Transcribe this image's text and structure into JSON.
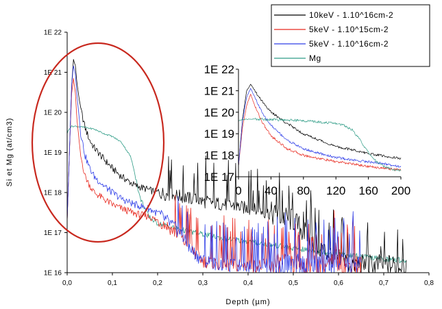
{
  "chart_data": [
    {
      "type": "line",
      "xlabel": "Depth (µm)",
      "ylabel": "Si et Mg (at/cm3)",
      "x_scale": "linear",
      "y_scale": "log",
      "xlim": [
        0,
        0.8
      ],
      "ylim": [
        1e+16,
        1e+22
      ],
      "x_ticks": [
        "0,0",
        "0,1",
        "0,2",
        "0,3",
        "0,4",
        "0,5",
        "0,6",
        "0,7",
        "0,8"
      ],
      "y_ticks": [
        "1E 16",
        "1E 17",
        "1E 18",
        "1E 19",
        "1E 20",
        "1E 21",
        "1E 22"
      ],
      "legend": "top-right",
      "annotation": "red ellipse highlighting the near-surface peak region",
      "series": [
        {
          "name": "10keV - 1.10^16cm-2",
          "color": "#000000",
          "x": [
            0.0,
            0.005,
            0.01,
            0.014,
            0.018,
            0.022,
            0.03,
            0.04,
            0.05,
            0.06,
            0.08,
            0.1,
            0.12,
            0.15,
            0.2,
            0.25,
            0.3,
            0.35,
            0.4,
            0.45,
            0.5,
            0.55,
            0.6,
            0.65,
            0.7,
            0.75
          ],
          "y": [
            2e+17,
            1e+19,
            5e+20,
            2.1e+21,
            1.5e+21,
            5e+20,
            1.2e+20,
            4e+19,
            2e+19,
            1.3e+19,
            7e+18,
            4e+18,
            2.5e+18,
            1.5e+18,
            1e+18,
            8e+17,
            6e+17,
            5e+17,
            4e+17,
            3e+17,
            2e+17,
            5e+16,
            2e+16,
            1.5e+16,
            1.5e+16,
            1.5e+16
          ]
        },
        {
          "name": "5keV - 1.10^15cm-2",
          "color": "#e8281e",
          "x": [
            0.0,
            0.005,
            0.01,
            0.014,
            0.018,
            0.022,
            0.03,
            0.04,
            0.05,
            0.06,
            0.08,
            0.1,
            0.12,
            0.15,
            0.18,
            0.2,
            0.22,
            0.25,
            0.27,
            0.3,
            0.35,
            0.4,
            0.5,
            0.6,
            0.65
          ],
          "y": [
            2e+17,
            1e+19,
            3e+20,
            7e+20,
            3e+20,
            6e+19,
            8e+18,
            2.5e+18,
            1.5e+18,
            1e+18,
            7e+17,
            5e+17,
            4e+17,
            3e+17,
            2.5e+17,
            2e+17,
            1.5e+17,
            8e+16,
            4e+16,
            2e+16,
            1.5e+16,
            1.5e+16,
            1.5e+16,
            1.5e+16,
            1.5e+16
          ]
        },
        {
          "name": "5keV - 1.10^16cm-2",
          "color": "#2e3de8",
          "x": [
            0.0,
            0.005,
            0.01,
            0.014,
            0.018,
            0.022,
            0.03,
            0.04,
            0.05,
            0.06,
            0.08,
            0.1,
            0.12,
            0.15,
            0.18,
            0.2,
            0.22,
            0.25,
            0.27,
            0.3,
            0.35,
            0.4,
            0.5,
            0.6,
            0.65
          ],
          "y": [
            2e+17,
            1e+19,
            5e+20,
            1.5e+21,
            9e+20,
            2.5e+20,
            3e+19,
            8e+18,
            4e+18,
            2.5e+18,
            1.5e+18,
            1e+18,
            7e+17,
            5e+17,
            4e+17,
            3e+17,
            2e+17,
            1e+17,
            4e+16,
            2e+16,
            1.5e+16,
            1.5e+16,
            1.5e+16,
            1.5e+16,
            1.5e+16
          ]
        },
        {
          "name": "Mg",
          "color": "#2e9c86",
          "x": [
            0.0,
            0.005,
            0.01,
            0.02,
            0.04,
            0.06,
            0.08,
            0.1,
            0.12,
            0.14,
            0.15,
            0.16,
            0.18,
            0.2,
            0.25,
            0.3,
            0.35,
            0.4,
            0.45,
            0.5,
            0.55,
            0.6,
            0.65,
            0.7,
            0.75
          ],
          "y": [
            3e+19,
            4e+19,
            4.5e+19,
            4.5e+19,
            4.2e+19,
            3.8e+19,
            3e+19,
            2.5e+19,
            1.8e+19,
            8e+18,
            3e+18,
            8e+17,
            2.5e+17,
            1.7e+17,
            1.2e+17,
            9e+16,
            7e+16,
            6e+16,
            5e+16,
            4e+16,
            3.5e+16,
            3e+16,
            2.5e+16,
            2.2e+16,
            2e+16
          ]
        }
      ]
    },
    {
      "type": "line",
      "xlabel": "",
      "ylabel": "",
      "x_scale": "linear",
      "y_scale": "log",
      "xlim": [
        0,
        200
      ],
      "ylim": [
        1e+17,
        1e+22
      ],
      "x_ticks": [
        "0",
        "40",
        "80",
        "120",
        "160",
        "200"
      ],
      "y_ticks": [
        "1E 17",
        "1E 18",
        "1E 19",
        "1E 20",
        "1E 21",
        "1E 22"
      ],
      "series": [
        {
          "color": "#000000",
          "x": [
            0,
            5,
            10,
            15,
            20,
            30,
            40,
            60,
            80,
            100,
            120,
            140,
            160,
            180,
            200
          ],
          "y": [
            3e+17,
            5e+19,
            1e+21,
            2e+21,
            1e+21,
            3e+20,
            1e+20,
            3e+19,
            1e+19,
            5e+18,
            2.5e+18,
            1.8e+18,
            1.2e+18,
            9e+17,
            7e+17
          ]
        },
        {
          "color": "#e8281e",
          "x": [
            0,
            5,
            10,
            15,
            20,
            30,
            40,
            60,
            80,
            100,
            120,
            140,
            160,
            180,
            200
          ],
          "y": [
            3e+17,
            2e+19,
            2e+20,
            7e+20,
            2e+20,
            3e+19,
            8e+18,
            2e+18,
            1e+18,
            7e+17,
            5e+17,
            4e+17,
            3e+17,
            2.5e+17,
            2e+17
          ]
        },
        {
          "color": "#2e3de8",
          "x": [
            0,
            5,
            10,
            15,
            20,
            30,
            40,
            60,
            80,
            100,
            120,
            140,
            160,
            180,
            200
          ],
          "y": [
            3e+17,
            4e+19,
            5e+20,
            1.3e+21,
            5e+20,
            8e+19,
            2.5e+19,
            5e+18,
            2e+18,
            1.2e+18,
            8e+17,
            6e+17,
            5e+17,
            4e+17,
            3e+17
          ]
        },
        {
          "color": "#2e9c86",
          "x": [
            0,
            5,
            10,
            20,
            40,
            60,
            80,
            100,
            120,
            130,
            140,
            150,
            160,
            170,
            180,
            190,
            200
          ],
          "y": [
            4e+19,
            4.5e+19,
            4.7e+19,
            4.8e+19,
            4.6e+19,
            4.4e+19,
            4e+19,
            3.5e+19,
            3e+19,
            2.5e+19,
            1.5e+19,
            5e+18,
            1.3e+18,
            5e+17,
            3e+17,
            2.2e+17,
            2e+17
          ]
        }
      ]
    }
  ]
}
